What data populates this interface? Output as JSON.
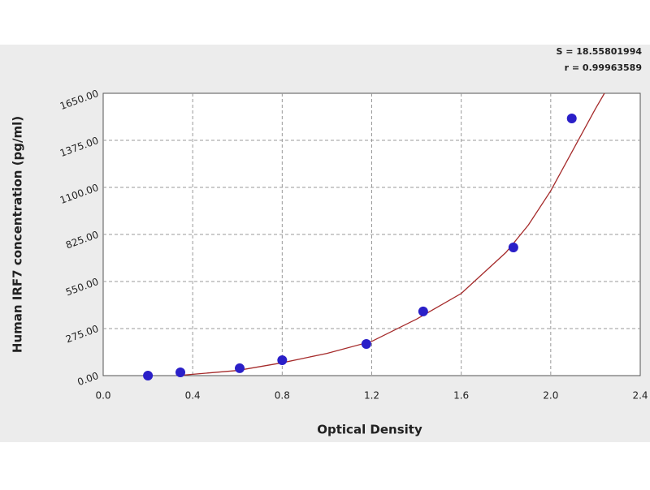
{
  "chart_data": {
    "type": "scatter",
    "x_label": "Optical Density",
    "y_label": "Human IRF7 concentration (pg/ml)",
    "annotations": [
      "S = 18.55801994",
      "r = 0.99963589"
    ],
    "x": [
      0.2,
      0.345,
      0.61,
      0.8,
      1.176,
      1.43,
      1.833,
      2.094
    ],
    "values": [
      0,
      19,
      43,
      90,
      185,
      375,
      749,
      1503
    ],
    "color": "#2a1fc8",
    "curve": {
      "x": [
        0.33,
        0.6,
        0.8,
        1.0,
        1.2,
        1.4,
        1.6,
        1.8,
        1.9,
        2.0,
        2.1,
        2.2,
        2.24
      ],
      "values": [
        0,
        30,
        75,
        130,
        200,
        330,
        480,
        720,
        880,
        1080,
        1320,
        1560,
        1650
      ],
      "color": "#a52a2a"
    },
    "xlim": [
      0,
      2.4
    ],
    "xticks": [
      {
        "value": 0,
        "label": "0.0"
      },
      0.4,
      0.8,
      1.2,
      1.6,
      {
        "value": 2,
        "label": "2.0"
      },
      2.4
    ],
    "ylim": [
      0,
      1650
    ],
    "yticks": [
      {
        "value": 0,
        "label": "0.00"
      },
      {
        "value": 275,
        "label": "275.00"
      },
      {
        "value": 550,
        "label": "550.00"
      },
      {
        "value": 825,
        "label": "825.00"
      },
      {
        "value": 1100,
        "label": "1100.00"
      },
      {
        "value": 1375,
        "label": "1375.00"
      },
      {
        "value": 1650,
        "label": "1650.00"
      }
    ],
    "grid": true
  }
}
